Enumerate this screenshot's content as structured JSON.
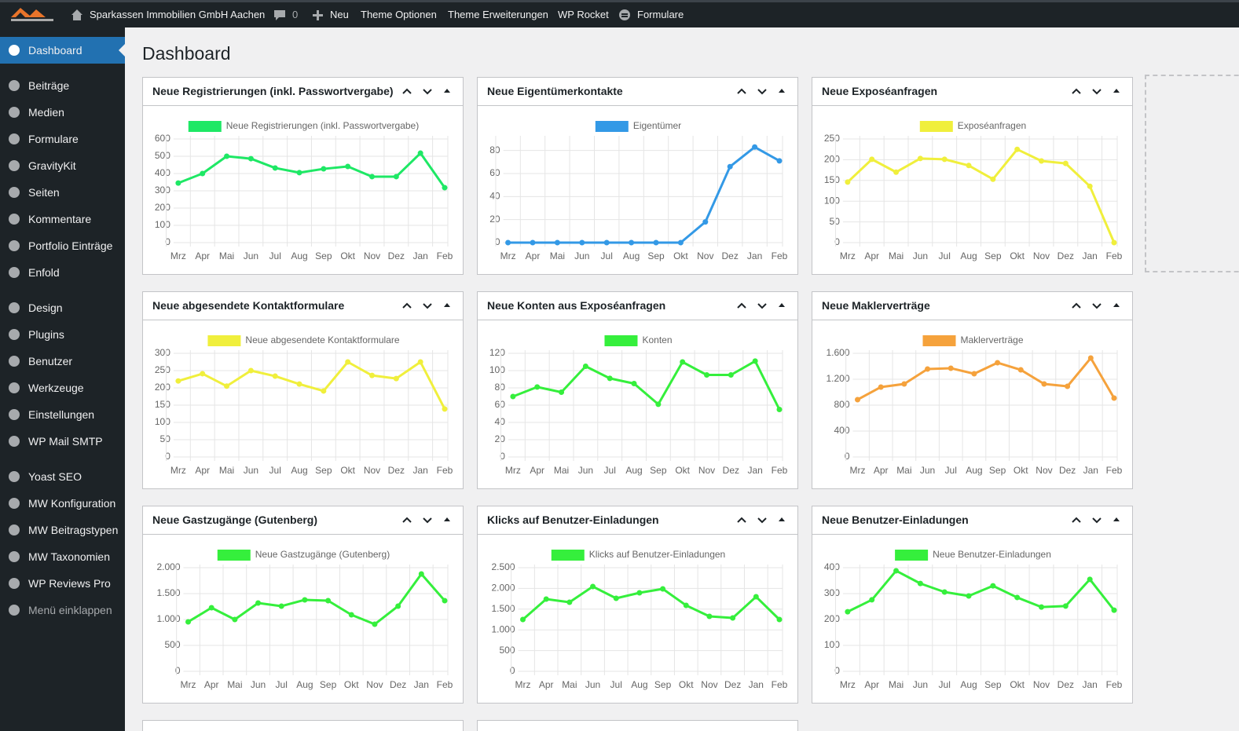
{
  "admin_bar": {
    "site": "Sparkassen Immobilien GmbH Aachen",
    "comments": "0",
    "items": [
      "Neu",
      "Theme Optionen",
      "Theme Erweiterungen",
      "WP Rocket",
      "Formulare"
    ]
  },
  "menu": [
    [
      "Dashboard"
    ],
    [
      "Beiträge",
      "Medien",
      "Formulare",
      "GravityKit",
      "Seiten",
      "Kommentare",
      "Portfolio Einträge",
      "Enfold"
    ],
    [
      "Design",
      "Plugins",
      "Benutzer",
      "Werkzeuge",
      "Einstellungen",
      "WP Mail SMTP"
    ],
    [
      "Yoast SEO",
      "MW Konfiguration",
      "MW Beitragstypen",
      "MW Taxonomien",
      "WP Reviews Pro"
    ]
  ],
  "collapse_label": "Menü einklappen",
  "page_title": "Dashboard",
  "chart_data": [
    {
      "type": "line",
      "title": "Neue Registrierungen (inkl. Passwortvergabe)",
      "categories": [
        "Mrz",
        "Apr",
        "Mai",
        "Jun",
        "Jul",
        "Aug",
        "Sep",
        "Okt",
        "Nov",
        "Dez",
        "Jan",
        "Feb"
      ],
      "series": [
        {
          "name": "Neue Registrierungen (inkl. Passwortvergabe)",
          "color": "#1ee865",
          "values": [
            345,
            400,
            500,
            486,
            432,
            405,
            427,
            441,
            382,
            382,
            518,
            318
          ]
        }
      ],
      "ylim": [
        0,
        600
      ],
      "yticks": [
        0,
        100,
        200,
        300,
        400,
        500,
        600
      ],
      "grid": true
    },
    {
      "type": "line",
      "title": "Neue Eigentümerkontakte",
      "categories": [
        "Mrz",
        "Apr",
        "Mai",
        "Jun",
        "Jul",
        "Aug",
        "Sep",
        "Okt",
        "Nov",
        "Dez",
        "Jan",
        "Feb"
      ],
      "series": [
        {
          "name": "Eigentümer",
          "color": "#3399e6",
          "values": [
            0,
            0,
            0,
            0,
            0,
            0,
            0,
            0,
            18,
            66,
            83,
            71
          ]
        }
      ],
      "ylim": [
        0,
        90
      ],
      "yticks": [
        0,
        20,
        40,
        60,
        80
      ],
      "grid": true
    },
    {
      "type": "line",
      "title": "Neue Exposéanfragen",
      "categories": [
        "Mrz",
        "Apr",
        "Mai",
        "Jun",
        "Jul",
        "Aug",
        "Sep",
        "Okt",
        "Nov",
        "Dez",
        "Jan",
        "Feb"
      ],
      "series": [
        {
          "name": "Exposéanfragen",
          "color": "#f0ef3c",
          "values": [
            146,
            201,
            170,
            203,
            201,
            186,
            153,
            225,
            197,
            191,
            136,
            0
          ]
        }
      ],
      "ylim": [
        0,
        250
      ],
      "yticks": [
        0,
        50,
        100,
        150,
        200,
        250
      ],
      "grid": true
    },
    {
      "type": "line",
      "title": "Neue abgesendete Kontaktformulare",
      "categories": [
        "Mrz",
        "Apr",
        "Mai",
        "Jun",
        "Jul",
        "Aug",
        "Sep",
        "Okt",
        "Nov",
        "Dez",
        "Jan",
        "Feb"
      ],
      "series": [
        {
          "name": "Neue abgesendete Kontaktformulare",
          "color": "#f0ef3c",
          "values": [
            220,
            241,
            205,
            250,
            234,
            211,
            191,
            275,
            236,
            227,
            275,
            139
          ]
        }
      ],
      "ylim": [
        0,
        300
      ],
      "yticks": [
        0,
        50,
        100,
        150,
        200,
        250,
        300
      ],
      "grid": true
    },
    {
      "type": "line",
      "title": "Neue Konten aus Exposéanfragen",
      "categories": [
        "Mrz",
        "Apr",
        "Mai",
        "Jun",
        "Jul",
        "Aug",
        "Sep",
        "Okt",
        "Nov",
        "Dez",
        "Jan",
        "Feb"
      ],
      "series": [
        {
          "name": "Konten",
          "color": "#35ef3c",
          "values": [
            70,
            81,
            75,
            105,
            91,
            85,
            61,
            110,
            95,
            95,
            111,
            55
          ]
        }
      ],
      "ylim": [
        0,
        120
      ],
      "yticks": [
        0,
        20,
        40,
        60,
        80,
        100,
        120
      ],
      "grid": true
    },
    {
      "type": "line",
      "title": "Neue Maklerverträge",
      "categories": [
        "Mrz",
        "Apr",
        "Mai",
        "Jun",
        "Jul",
        "Aug",
        "Sep",
        "Okt",
        "Nov",
        "Dez",
        "Jan",
        "Feb"
      ],
      "series": [
        {
          "name": "Maklerverträge",
          "color": "#f5a23c",
          "values": [
            885,
            1079,
            1127,
            1358,
            1370,
            1285,
            1455,
            1345,
            1127,
            1091,
            1527,
            909
          ]
        }
      ],
      "ylim": [
        0,
        1600
      ],
      "yticks": [
        0,
        400,
        800,
        {
          "value": 1200,
          "label": "1.200"
        },
        {
          "value": 1600,
          "label": "1.600"
        }
      ],
      "grid": true
    },
    {
      "type": "line",
      "title": "Neue Gastzugänge (Gutenberg)",
      "categories": [
        "Mrz",
        "Apr",
        "Mai",
        "Jun",
        "Jul",
        "Aug",
        "Sep",
        "Okt",
        "Nov",
        "Dez",
        "Jan",
        "Feb"
      ],
      "series": [
        {
          "name": "Neue Gastzugänge (Gutenberg)",
          "color": "#35ef3c",
          "values": [
            955,
            1227,
            1000,
            1318,
            1258,
            1379,
            1364,
            1091,
            909,
            1258,
            1879,
            1364
          ]
        }
      ],
      "ylim": [
        0,
        2000
      ],
      "yticks": [
        0,
        500,
        {
          "value": 1000,
          "label": "1.000"
        },
        {
          "value": 1500,
          "label": "1.500"
        },
        {
          "value": 2000,
          "label": "2.000"
        }
      ],
      "grid": true
    },
    {
      "type": "line",
      "title": "Klicks auf Benutzer-Einladungen",
      "categories": [
        "Mrz",
        "Apr",
        "Mai",
        "Jun",
        "Jul",
        "Aug",
        "Sep",
        "Okt",
        "Nov",
        "Dez",
        "Jan",
        "Feb"
      ],
      "series": [
        {
          "name": "Klicks auf Benutzer-Einladungen",
          "color": "#35ef3c",
          "values": [
            1250,
            1742,
            1667,
            2045,
            1761,
            1894,
            1989,
            1591,
            1326,
            1288,
            1799,
            1250
          ]
        }
      ],
      "ylim": [
        0,
        2500
      ],
      "yticks": [
        0,
        500,
        {
          "value": 1000,
          "label": "1.000"
        },
        {
          "value": 1500,
          "label": "1.500"
        },
        {
          "value": 2000,
          "label": "2.000"
        },
        {
          "value": 2500,
          "label": "2.500"
        }
      ],
      "grid": true
    },
    {
      "type": "line",
      "title": "Neue Benutzer-Einladungen",
      "categories": [
        "Mrz",
        "Apr",
        "Mai",
        "Jun",
        "Jul",
        "Aug",
        "Sep",
        "Okt",
        "Nov",
        "Dez",
        "Jan",
        "Feb"
      ],
      "series": [
        {
          "name": "Neue Benutzer-Einladungen",
          "color": "#35ef3c",
          "values": [
            230,
            276,
            388,
            339,
            306,
            291,
            330,
            285,
            248,
            252,
            355,
            236
          ]
        }
      ],
      "ylim": [
        0,
        400
      ],
      "yticks": [
        0,
        100,
        200,
        300,
        400
      ],
      "grid": true
    }
  ]
}
